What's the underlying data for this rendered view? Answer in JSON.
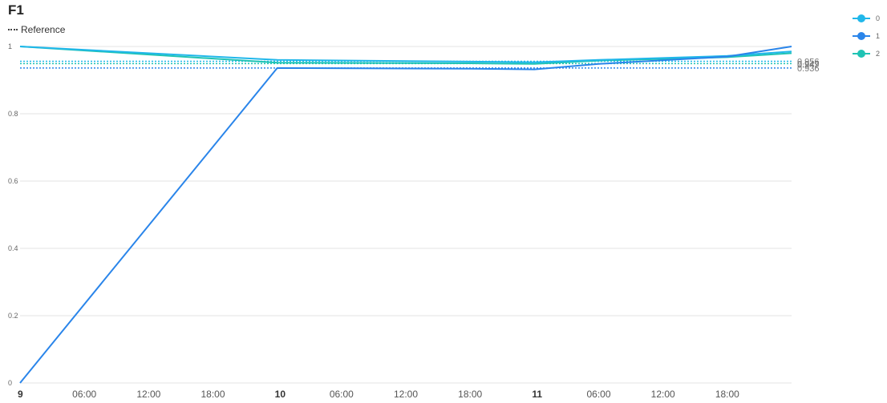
{
  "chart_data": {
    "type": "line",
    "title": "F1",
    "reference_legend": "Reference",
    "x": [
      "9 00:00",
      "10 00:00",
      "10 18:00",
      "11 00:00",
      "11 06:00",
      "11 18:00",
      "12 00:00"
    ],
    "x_ticks": [
      "9",
      "06:00",
      "12:00",
      "18:00",
      "10",
      "06:00",
      "12:00",
      "18:00",
      "11",
      "06:00",
      "12:00",
      "18:00"
    ],
    "y_ticks": [
      "0",
      "0.2",
      "0.4",
      "0.6",
      "0.8",
      "1"
    ],
    "ylim": [
      0,
      1
    ],
    "series": [
      {
        "name": "0",
        "color": "#20b7ea",
        "values": [
          1.0,
          0.96,
          0.955,
          0.953,
          0.96,
          0.972,
          0.985
        ],
        "reference": 0.956
      },
      {
        "name": "1",
        "color": "#2a85ea",
        "values": [
          0.0,
          0.936,
          0.934,
          0.932,
          0.948,
          0.97,
          1.0
        ],
        "reference": 0.936
      },
      {
        "name": "2",
        "color": "#1fc3b4",
        "values": [
          1.0,
          0.952,
          0.95,
          0.948,
          0.958,
          0.968,
          0.98
        ],
        "reference": 0.949
      }
    ],
    "reference_labels": [
      "0.956",
      "0.949",
      "0.947",
      "0.936"
    ],
    "grid": true,
    "legend_position": "top-right"
  }
}
